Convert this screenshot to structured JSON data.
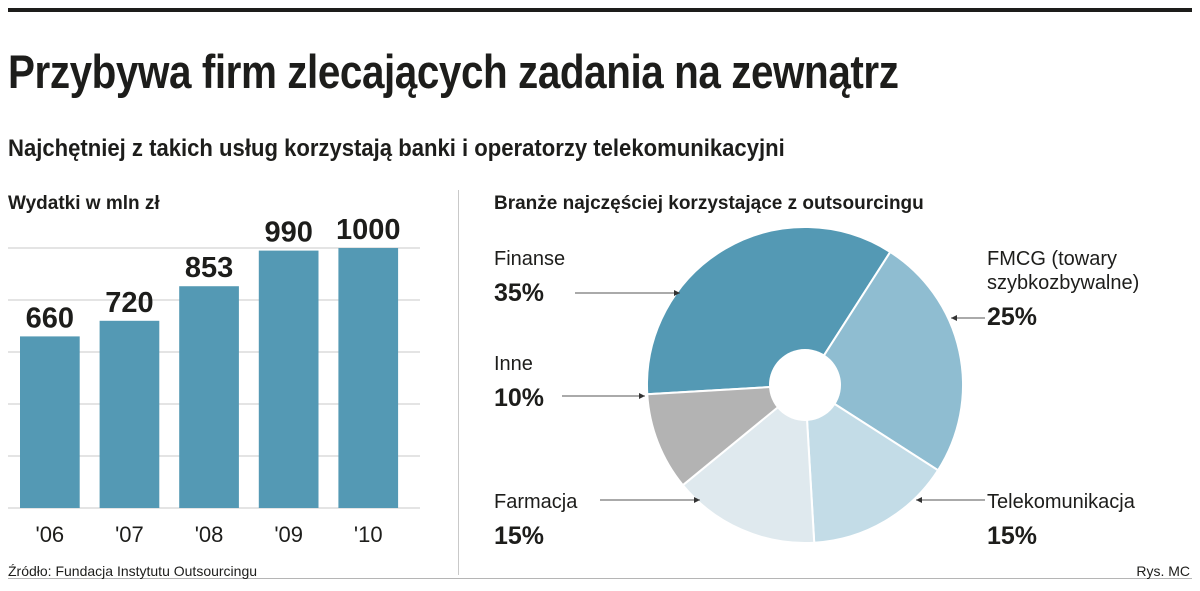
{
  "header": {
    "title": "Przybywa firm zlecających zadania na zewnątrz",
    "subtitle": "Najchętniej z takich usług korzystają banki i operatorzy telekomunikacyjni"
  },
  "footer": {
    "source": "Źródło: Fundacja Instytutu Outsourcingu",
    "credit": "Rys. MC"
  },
  "colors": {
    "bar": "#5499b4",
    "grid": "#c8c8c8",
    "text": "#1d1d1b"
  },
  "chart_data": [
    {
      "type": "bar",
      "title": "Wydatki w mln zł",
      "categories": [
        "'06",
        "'07",
        "'08",
        "'09",
        "'10"
      ],
      "values": [
        660,
        720,
        853,
        990,
        1000
      ],
      "value_labels": [
        "660",
        "720",
        "853",
        "990",
        "1000"
      ],
      "xlabel": "",
      "ylabel": "",
      "ylim": [
        0,
        1000
      ],
      "grid": true,
      "gridlines": [
        0,
        200,
        400,
        600,
        800,
        1000
      ]
    },
    {
      "type": "pie",
      "title": "Branże najczęściej korzystające z outsourcingu",
      "donut": true,
      "slices": [
        {
          "label": "Finanse",
          "label_lines": [
            "Finanse"
          ],
          "value": 35,
          "value_label": "35%",
          "color": "#5499b4"
        },
        {
          "label": "FMCG (towary szybkozbywalne)",
          "label_lines": [
            "FMCG (towary",
            "szybkozbywalne)"
          ],
          "value": 25,
          "value_label": "25%",
          "color": "#8fbdd1"
        },
        {
          "label": "Telekomunikacja",
          "label_lines": [
            "Telekomunikacja"
          ],
          "value": 15,
          "value_label": "15%",
          "color": "#c3dce7"
        },
        {
          "label": "Farmacja",
          "label_lines": [
            "Farmacja"
          ],
          "value": 15,
          "value_label": "15%",
          "color": "#dfe9ee"
        },
        {
          "label": "Inne",
          "label_lines": [
            "Inne"
          ],
          "value": 10,
          "value_label": "10%",
          "color": "#b3b3b3"
        }
      ]
    }
  ]
}
